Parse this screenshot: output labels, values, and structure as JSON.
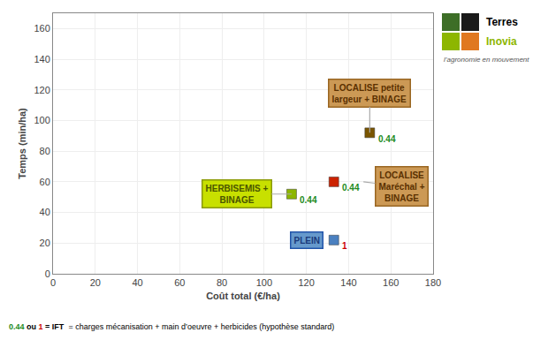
{
  "chart_data": {
    "type": "scatter",
    "xlabel": "Coût total (€/ha)",
    "ylabel": "Temps (min/ha)",
    "xlim": [
      0,
      180
    ],
    "ylim": [
      0,
      170
    ],
    "xticks": [
      0,
      20,
      40,
      60,
      80,
      100,
      120,
      140,
      160,
      180
    ],
    "yticks": [
      0,
      20,
      40,
      60,
      80,
      100,
      120,
      140,
      160
    ],
    "grid": true,
    "marker": "square",
    "x": [
      113,
      133,
      133,
      150
    ],
    "values": [
      52,
      22,
      60,
      92
    ],
    "colors": [
      "#8db600",
      "#4a80c0",
      "#cc2200",
      "#7a5500"
    ],
    "annotations": [
      {
        "text": "HERBISEMIS +\nBINAGE",
        "x": 87,
        "y": 52,
        "point": [
          113,
          52
        ],
        "color": "#4a5500",
        "fill": "#c8e000",
        "border": "#8a9900"
      },
      {
        "text": "PLEIN",
        "x": 120,
        "y": 22,
        "color": "#1a3a7a",
        "fill": "#6699cc",
        "border": "#2255aa"
      },
      {
        "text": "LOCALISE\nMaréchal +\nBINAGE",
        "x": 165,
        "y": 57,
        "point": [
          147,
          60
        ],
        "color": "#5a3000",
        "fill": "#cc9955",
        "border": "#996622"
      },
      {
        "text": "LOCALISE petite\nlargeur + BINAGE",
        "x": 150,
        "y": 118,
        "point": [
          150,
          92
        ],
        "color": "#5a3000",
        "fill": "#cc9955",
        "border": "#996622"
      },
      {
        "text": "0.44",
        "x": 116,
        "y": 48,
        "color": "#228B22"
      },
      {
        "text": "1",
        "x": 136,
        "y": 18,
        "color": "#cc0000"
      },
      {
        "text": "0.44",
        "x": 136,
        "y": 56,
        "color": "#228B22"
      },
      {
        "text": "0.44",
        "x": 153,
        "y": 88,
        "color": "#228B22"
      }
    ],
    "footer": {
      "items": [
        {
          "text": "0.44",
          "color": "#228B22"
        },
        {
          "text": "ou",
          "color": "#000000"
        },
        {
          "text": "1",
          "color": "#cc0000"
        },
        {
          "text": "= IFT",
          "color": "#000000"
        }
      ],
      "text": "= charges mécanisation + main d’oeuvre + herbicides (hypothèse standard)"
    },
    "logo": {
      "colors": [
        "#3d6e27",
        "#1a1a1a",
        "#8db600",
        "#e07820"
      ],
      "texts": [
        {
          "text": "Terres",
          "color": "#000000"
        },
        {
          "text": "Inovia",
          "color": "#8db600"
        },
        {
          "text": "l’agronomie en mouvement",
          "color": "#555555"
        }
      ]
    }
  }
}
